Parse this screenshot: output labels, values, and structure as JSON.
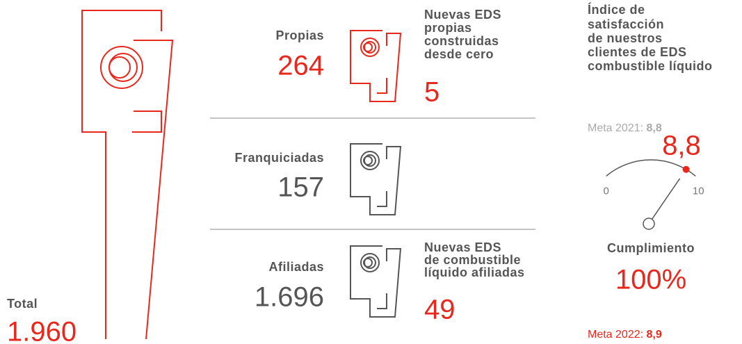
{
  "total": {
    "label": "Total",
    "value": "1.960"
  },
  "propias": {
    "label": "Propias",
    "value": "264",
    "note_lines": [
      "Nuevas EDS",
      "propias",
      "construidas",
      "desde cero"
    ],
    "note_value": "5"
  },
  "franquiciadas": {
    "label": "Franquiciadas",
    "value": "157"
  },
  "afiliadas": {
    "label": "Afiliadas",
    "value": "1.696",
    "note_lines": [
      "Nuevas EDS",
      "de combustible",
      "líquido afiliadas"
    ],
    "note_value": "49"
  },
  "satisfaction": {
    "title_lines": [
      "Índice de",
      "satisfacción",
      "de nuestros",
      "clientes de EDS",
      "combustible líquido"
    ],
    "meta_2021_label": "Meta 2021:",
    "meta_2021_value": "8,8",
    "gauge": {
      "min": 0,
      "max": 10,
      "value": 8.8,
      "value_label": "8,8"
    },
    "compliance_label": "Cumplimiento",
    "compliance_value": "100%",
    "meta_2022_label": "Meta 2022:",
    "meta_2022_value": "8,9"
  }
}
